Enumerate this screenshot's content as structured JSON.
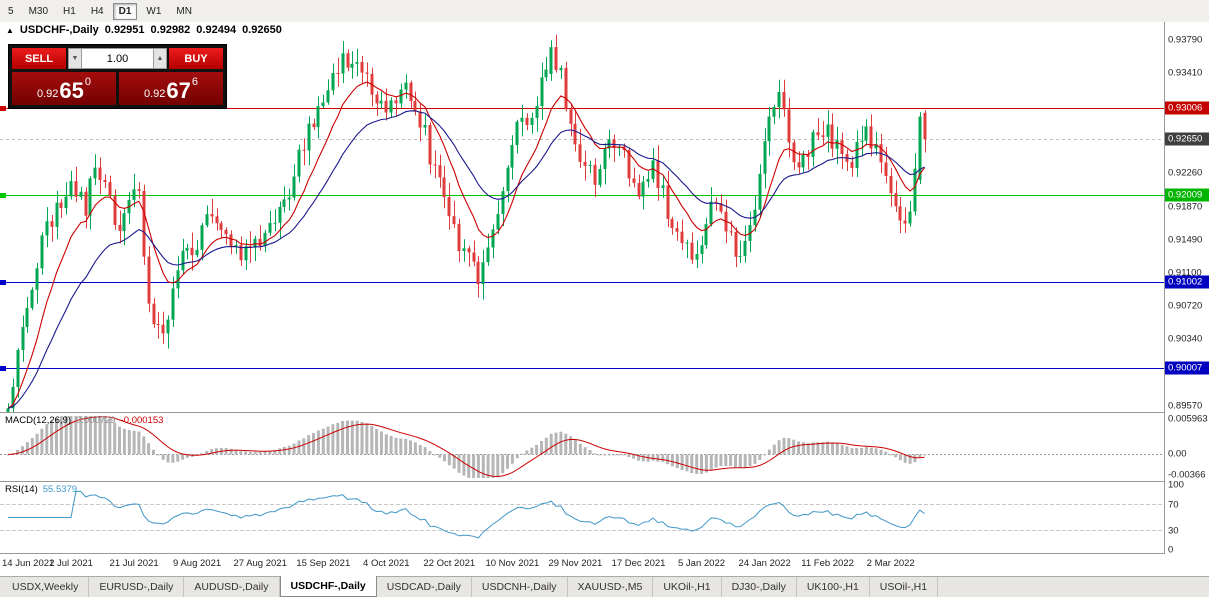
{
  "toolbar": {
    "timeframes": [
      {
        "label": "5",
        "active": false
      },
      {
        "label": "M30",
        "active": false
      },
      {
        "label": "H1",
        "active": false
      },
      {
        "label": "H4",
        "active": false
      },
      {
        "label": "D1",
        "active": true
      },
      {
        "label": "W1",
        "active": false
      },
      {
        "label": "MN",
        "active": false
      }
    ]
  },
  "chart_header": {
    "collapse_icon": "▲",
    "symbol": "USDCHF-,Daily",
    "open": "0.92951",
    "high": "0.92982",
    "low": "0.92494",
    "close": "0.92650"
  },
  "trade_panel": {
    "sell_label": "SELL",
    "buy_label": "BUY",
    "volume": "1.00",
    "spinner_down": "▼",
    "spinner_up": "▲",
    "sell_price": {
      "prefix": "0.92",
      "big": "65",
      "sup": "0"
    },
    "buy_price": {
      "prefix": "0.92",
      "big": "67",
      "sup": "6"
    }
  },
  "price_axis": {
    "ticks": [
      "0.93790",
      "0.93410",
      "0.92260",
      "0.91870",
      "0.91490",
      "0.91100",
      "0.90720",
      "0.90340",
      "0.89570"
    ],
    "badges": [
      {
        "text": "0.93006",
        "bg": "#c40000"
      },
      {
        "text": "0.92650",
        "bg": "#3f3f3f"
      },
      {
        "text": "0.92009",
        "bg": "#00b400"
      },
      {
        "text": "0.91002",
        "bg": "#0000c0"
      },
      {
        "text": "0.90007",
        "bg": "#0000c0"
      }
    ]
  },
  "macd_panel": {
    "label": "MACD(12,26,9)",
    "value_main": "0.000729",
    "value_signal": "-0.000153",
    "axis_max": "0.005963",
    "axis_zero": "0.00",
    "axis_min": "-0.00366"
  },
  "rsi_panel": {
    "label": "RSI(14)",
    "value": "55.5379",
    "axis": [
      "100",
      "70",
      "30",
      "0"
    ],
    "levels": [
      70,
      30
    ]
  },
  "date_axis": [
    {
      "i": 0,
      "label": "14 Jun 2021"
    },
    {
      "i": 13,
      "label": "2 Jul 2021"
    },
    {
      "i": 26,
      "label": "21 Jul 2021"
    },
    {
      "i": 39,
      "label": "9 Aug 2021"
    },
    {
      "i": 52,
      "label": "27 Aug 2021"
    },
    {
      "i": 65,
      "label": "15 Sep 2021"
    },
    {
      "i": 78,
      "label": "4 Oct 2021"
    },
    {
      "i": 91,
      "label": "22 Oct 2021"
    },
    {
      "i": 104,
      "label": "10 Nov 2021"
    },
    {
      "i": 117,
      "label": "29 Nov 2021"
    },
    {
      "i": 130,
      "label": "17 Dec 2021"
    },
    {
      "i": 143,
      "label": "5 Jan 2022"
    },
    {
      "i": 156,
      "label": "24 Jan 2022"
    },
    {
      "i": 169,
      "label": "11 Feb 2022"
    },
    {
      "i": 182,
      "label": "2 Mar 2022"
    }
  ],
  "bottom_tabs": [
    {
      "label": "USDX,Weekly",
      "active": false
    },
    {
      "label": "EURUSD-,Daily",
      "active": false
    },
    {
      "label": "AUDUSD-,Daily",
      "active": false
    },
    {
      "label": "USDCHF-,Daily",
      "active": true
    },
    {
      "label": "USDCAD-,Daily",
      "active": false
    },
    {
      "label": "USDCNH-,Daily",
      "active": false
    },
    {
      "label": "XAUUSD-,M5",
      "active": false
    },
    {
      "label": "UKOil-,H1",
      "active": false
    },
    {
      "label": "DJ30-,Daily",
      "active": false
    },
    {
      "label": "UK100-,H1",
      "active": false
    },
    {
      "label": "USOil-,H1",
      "active": false
    }
  ],
  "chart_data": {
    "type": "candlestick",
    "title": "USDCHF-,Daily",
    "n_candles": 190,
    "y_range": [
      0.895,
      0.94
    ],
    "current": {
      "open": 0.92951,
      "high": 0.92982,
      "low": 0.92494,
      "close": 0.9265,
      "bid": 0.9265,
      "ask": 0.92676
    },
    "close_anchors": [
      [
        0,
        0.896
      ],
      [
        2,
        0.901
      ],
      [
        4,
        0.9075
      ],
      [
        7,
        0.9148
      ],
      [
        10,
        0.9185
      ],
      [
        13,
        0.921
      ],
      [
        16,
        0.9185
      ],
      [
        18,
        0.924
      ],
      [
        20,
        0.921
      ],
      [
        23,
        0.915
      ],
      [
        25,
        0.919
      ],
      [
        27,
        0.92
      ],
      [
        29,
        0.9075
      ],
      [
        32,
        0.9042
      ],
      [
        34,
        0.9095
      ],
      [
        36,
        0.913
      ],
      [
        39,
        0.9148
      ],
      [
        42,
        0.9185
      ],
      [
        45,
        0.916
      ],
      [
        48,
        0.913
      ],
      [
        51,
        0.9145
      ],
      [
        54,
        0.916
      ],
      [
        57,
        0.9195
      ],
      [
        60,
        0.924
      ],
      [
        63,
        0.929
      ],
      [
        66,
        0.9325
      ],
      [
        70,
        0.936
      ],
      [
        73,
        0.9345
      ],
      [
        76,
        0.9315
      ],
      [
        79,
        0.93
      ],
      [
        82,
        0.933
      ],
      [
        85,
        0.929
      ],
      [
        88,
        0.9225
      ],
      [
        91,
        0.918
      ],
      [
        94,
        0.913
      ],
      [
        97,
        0.9105
      ],
      [
        100,
        0.916
      ],
      [
        103,
        0.9225
      ],
      [
        106,
        0.93
      ],
      [
        108,
        0.9285
      ],
      [
        110,
        0.933
      ],
      [
        112,
        0.9371
      ],
      [
        114,
        0.934
      ],
      [
        116,
        0.928
      ],
      [
        118,
        0.924
      ],
      [
        121,
        0.9225
      ],
      [
        124,
        0.9275
      ],
      [
        127,
        0.924
      ],
      [
        130,
        0.9205
      ],
      [
        133,
        0.9235
      ],
      [
        136,
        0.9185
      ],
      [
        139,
        0.914
      ],
      [
        142,
        0.9135
      ],
      [
        145,
        0.9185
      ],
      [
        148,
        0.9165
      ],
      [
        151,
        0.913
      ],
      [
        154,
        0.918
      ],
      [
        157,
        0.929
      ],
      [
        159,
        0.9325
      ],
      [
        162,
        0.923
      ],
      [
        165,
        0.9255
      ],
      [
        168,
        0.928
      ],
      [
        171,
        0.9258
      ],
      [
        174,
        0.9235
      ],
      [
        177,
        0.928
      ],
      [
        180,
        0.9235
      ],
      [
        183,
        0.9175
      ],
      [
        185,
        0.9165
      ],
      [
        187,
        0.9218
      ],
      [
        188,
        0.9291
      ],
      [
        189,
        0.9265
      ]
    ],
    "forced_candles": {
      "112": [
        0.934,
        0.9379,
        0.9332,
        0.9371
      ],
      "188": [
        0.9218,
        0.9296,
        0.9213,
        0.9291
      ],
      "189": [
        0.92951,
        0.92982,
        0.92494,
        0.9265
      ]
    },
    "hlines": [
      {
        "price": 0.93006,
        "color": "#cc0000",
        "name": "resistance-line-red"
      },
      {
        "price": 0.92009,
        "color": "#00c800",
        "name": "support-line-green"
      },
      {
        "price": 0.91002,
        "color": "#0000c8",
        "name": "support-line-blue-1"
      },
      {
        "price": 0.90007,
        "color": "#0000c8",
        "name": "support-line-blue-2"
      }
    ],
    "bid_line_price": 0.9265,
    "ma_fast": {
      "period": 10,
      "color": "#cc0000"
    },
    "ma_slow": {
      "period": 24,
      "color": "#1a1a8c"
    },
    "macd": {
      "fast": 12,
      "slow": 26,
      "signal": 9,
      "range": [
        -0.00366,
        0.005963
      ],
      "hist_color": "#b6b6b6",
      "signal_color": "#cc0000"
    },
    "rsi": {
      "period": 14,
      "color": "#3f96c8",
      "range": [
        0,
        100
      ]
    },
    "candle_up_color": "#00a651",
    "candle_down_color": "#e03c3c"
  }
}
